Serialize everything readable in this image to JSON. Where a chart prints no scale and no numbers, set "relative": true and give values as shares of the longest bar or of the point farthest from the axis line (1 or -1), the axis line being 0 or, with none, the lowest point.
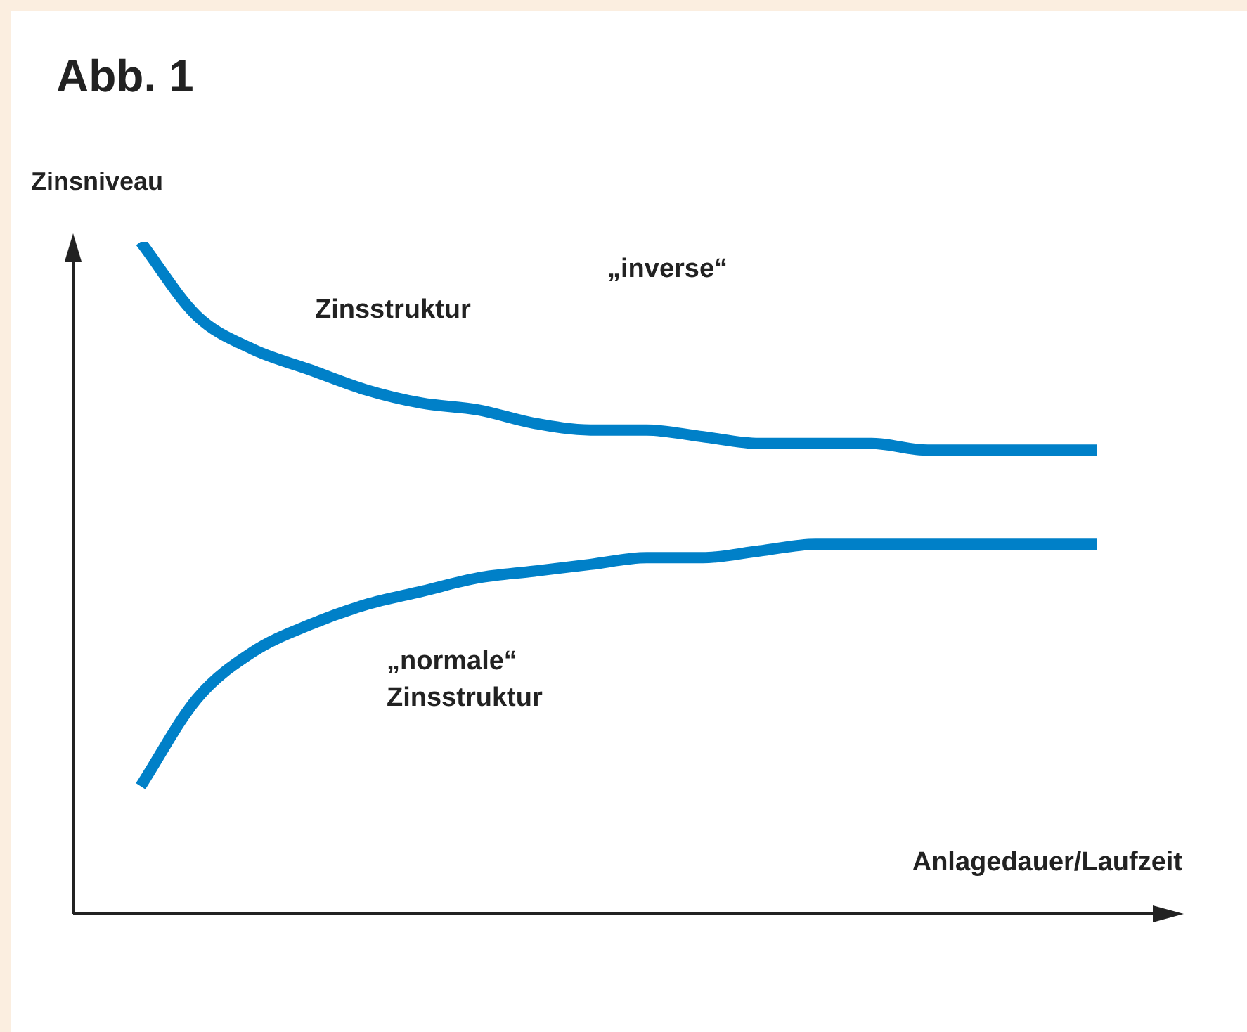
{
  "chart_data": {
    "type": "line",
    "relative": true,
    "title": "Abb. 1",
    "xlabel": "Anlagedauer/Laufzeit",
    "ylabel": "Zinsniveau",
    "annotations": [
      "„inverse“",
      "Zinsstruktur",
      "„normale“",
      "Zinsstruktur"
    ],
    "categories": [
      null,
      null,
      null,
      null,
      null,
      null,
      null,
      null,
      null,
      null,
      null,
      null,
      null,
      null,
      null,
      null,
      null,
      null
    ],
    "series": [
      {
        "color": "#0080c8",
        "values": [
          1.0,
          0.89,
          0.84,
          0.81,
          0.78,
          0.76,
          0.75,
          0.73,
          0.72,
          0.72,
          0.71,
          0.7,
          0.7,
          0.7,
          0.69,
          0.69,
          0.69,
          0.69
        ]
      },
      {
        "color": "#0080c8",
        "values": [
          0.19,
          0.32,
          0.39,
          0.43,
          0.46,
          0.48,
          0.5,
          0.51,
          0.52,
          0.53,
          0.53,
          0.54,
          0.55,
          0.55,
          0.55,
          0.55,
          0.55,
          0.55
        ]
      }
    ]
  }
}
